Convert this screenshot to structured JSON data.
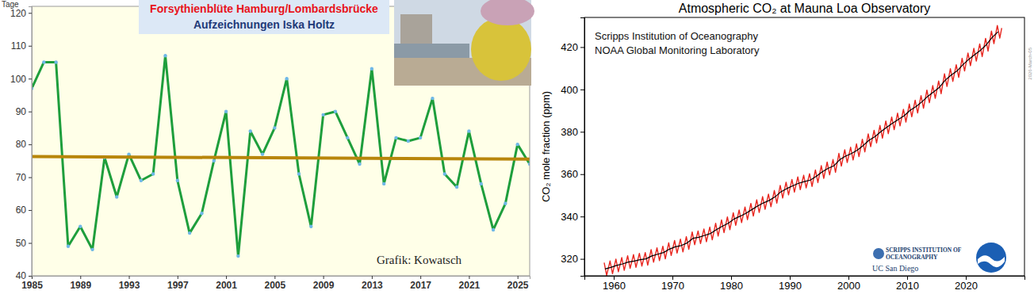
{
  "chart_data": [
    {
      "type": "line",
      "title": "Forsythienblüte Hamburg/Lombardsbrücke",
      "subtitle": "Aufzeichnungen Iska Holtz",
      "y_label": "Tage",
      "annotations": [
        "Grafik: Kowatsch"
      ],
      "x": [
        1985,
        1986,
        1987,
        1988,
        1989,
        1990,
        1991,
        1992,
        1993,
        1994,
        1995,
        1996,
        1997,
        1998,
        1999,
        2000,
        2001,
        2002,
        2003,
        2004,
        2005,
        2006,
        2007,
        2008,
        2009,
        2010,
        2011,
        2012,
        2013,
        2014,
        2015,
        2016,
        2017,
        2018,
        2019,
        2020,
        2021,
        2022,
        2023,
        2024,
        2025,
        2026
      ],
      "series": [
        {
          "color": "#1e9e3c",
          "marker": "circle",
          "values": [
            97,
            105,
            105,
            49,
            55,
            48,
            76,
            64,
            77,
            69,
            71,
            107,
            69,
            53,
            59,
            75,
            90,
            46,
            84,
            77,
            85,
            100,
            71,
            55,
            89,
            90,
            82,
            74,
            103,
            68,
            82,
            81,
            82,
            94,
            71,
            67,
            84,
            68,
            54,
            62,
            80,
            74
          ]
        },
        {
          "color": "#b8860b",
          "x": [
            1985,
            2026
          ],
          "values": [
            76.3,
            75.5
          ]
        }
      ],
      "xlim": [
        1985,
        2026
      ],
      "xticks": [
        1985,
        1989,
        1993,
        1997,
        2001,
        2005,
        2009,
        2013,
        2017,
        2021,
        2025
      ],
      "ylim": [
        40,
        122
      ],
      "yticks": [
        40,
        50,
        60,
        70,
        80,
        90,
        100,
        110,
        120
      ],
      "grid": false
    },
    {
      "type": "line",
      "title": "Atmospheric CO₂ at Mauna Loa Observatory",
      "y_label": "CO₂ mole fraction (ppm)",
      "annotations": [
        "Scripps Institution of Oceanography",
        "NOAA Global Monitoring Laboratory",
        "SCRIPPS INSTITUTION OF",
        "OCEANOGRAPHY",
        "UC San Diego",
        "2026-March-05"
      ],
      "series": [
        {
          "color": "#e8251e",
          "x": [
            1958.37,
            1958.79,
            1959.37,
            1959.79,
            1960.37,
            1960.79,
            1961.37,
            1961.79,
            1962.37,
            1962.79,
            1963.37,
            1963.79,
            1964.37,
            1964.79,
            1965.37,
            1965.79,
            1966.37,
            1966.79,
            1967.37,
            1967.79,
            1968.37,
            1968.79,
            1969.37,
            1969.79,
            1970.37,
            1970.79,
            1971.37,
            1971.79,
            1972.37,
            1972.79,
            1973.37,
            1973.79,
            1974.37,
            1974.79,
            1975.37,
            1975.79,
            1976.37,
            1976.79,
            1977.37,
            1977.79,
            1978.37,
            1978.79,
            1979.37,
            1979.79,
            1980.37,
            1980.79,
            1981.37,
            1981.79,
            1982.37,
            1982.79,
            1983.37,
            1983.79,
            1984.37,
            1984.79,
            1985.37,
            1985.79,
            1986.37,
            1986.79,
            1987.37,
            1987.79,
            1988.37,
            1988.79,
            1989.37,
            1989.79,
            1990.37,
            1990.79,
            1991.37,
            1991.79,
            1992.37,
            1992.79,
            1993.37,
            1993.79,
            1994.37,
            1994.79,
            1995.37,
            1995.79,
            1996.37,
            1996.79,
            1997.37,
            1997.79,
            1998.37,
            1998.79,
            1999.37,
            1999.79,
            2000.37,
            2000.79,
            2001.37,
            2001.79,
            2002.37,
            2002.79,
            2003.37,
            2003.79,
            2004.37,
            2004.79,
            2005.37,
            2005.79,
            2006.37,
            2006.79,
            2007.37,
            2007.79,
            2008.37,
            2008.79,
            2009.37,
            2009.79,
            2010.37,
            2010.79,
            2011.37,
            2011.79,
            2012.37,
            2012.79,
            2013.37,
            2013.79,
            2014.37,
            2014.79,
            2015.37,
            2015.79,
            2016.37,
            2016.79,
            2017.37,
            2017.79,
            2018.37,
            2018.79,
            2019.37,
            2019.79,
            2020.37,
            2020.79,
            2021.37,
            2021.79,
            2022.37,
            2022.79,
            2023.37,
            2023.79,
            2024.37,
            2024.79,
            2025.37,
            2025.79,
            2026.12
          ],
          "values": [
            318.2,
            312.2,
            319.0,
            313.0,
            319.9,
            313.9,
            320.6,
            314.6,
            321.5,
            315.5,
            322.0,
            316.0,
            322.6,
            316.6,
            323.0,
            317.0,
            324.4,
            318.4,
            325.2,
            319.2,
            326.0,
            320.0,
            327.6,
            321.6,
            328.7,
            322.7,
            329.3,
            323.3,
            330.5,
            324.5,
            332.7,
            326.7,
            333.2,
            327.2,
            334.1,
            328.1,
            335.0,
            329.0,
            336.8,
            330.8,
            338.4,
            332.4,
            339.8,
            333.8,
            341.8,
            335.8,
            343.1,
            337.1,
            344.5,
            338.5,
            346.2,
            340.2,
            347.9,
            341.9,
            349.4,
            343.4,
            350.6,
            344.6,
            352.3,
            346.3,
            354.7,
            348.7,
            356.2,
            350.2,
            357.5,
            351.5,
            358.7,
            352.7,
            359.5,
            353.5,
            360.2,
            354.2,
            362.0,
            356.0,
            364.0,
            358.0,
            365.7,
            359.7,
            366.9,
            360.9,
            369.8,
            363.8,
            371.5,
            365.5,
            372.7,
            366.7,
            374.3,
            368.3,
            376.5,
            370.5,
            379.0,
            373.0,
            380.7,
            374.7,
            383.0,
            377.0,
            385.1,
            379.1,
            387.0,
            381.0,
            388.8,
            382.8,
            390.6,
            384.6,
            393.1,
            387.1,
            394.9,
            388.9,
            397.1,
            391.1,
            399.7,
            393.7,
            401.8,
            395.8,
            404.0,
            398.0,
            407.4,
            401.4,
            409.8,
            403.8,
            411.7,
            405.7,
            414.7,
            408.7,
            417.2,
            411.2,
            419.4,
            413.4,
            421.5,
            415.5,
            424.1,
            418.1,
            427.6,
            421.6,
            430.2,
            424.2,
            429.0
          ]
        },
        {
          "color": "#000000",
          "x": [
            1958.5,
            1959.5,
            1960.5,
            1961.5,
            1962.5,
            1963.5,
            1964.5,
            1965.5,
            1966.5,
            1967.5,
            1968.5,
            1969.5,
            1970.5,
            1971.5,
            1972.5,
            1973.5,
            1974.5,
            1975.5,
            1976.5,
            1977.5,
            1978.5,
            1979.5,
            1980.5,
            1981.5,
            1982.5,
            1983.5,
            1984.5,
            1985.5,
            1986.5,
            1987.5,
            1988.5,
            1989.5,
            1990.5,
            1991.5,
            1992.5,
            1993.5,
            1994.5,
            1995.5,
            1996.5,
            1997.5,
            1998.5,
            1999.5,
            2000.5,
            2001.5,
            2002.5,
            2003.5,
            2004.5,
            2005.5,
            2006.5,
            2007.5,
            2008.5,
            2009.5,
            2010.5,
            2011.5,
            2012.5,
            2013.5,
            2014.5,
            2015.5,
            2016.5,
            2017.5,
            2018.5,
            2019.5,
            2020.5,
            2021.5,
            2022.5,
            2023.5,
            2024.5,
            2025.5
          ],
          "values": [
            315.2,
            316.0,
            316.9,
            317.6,
            318.5,
            319.0,
            319.6,
            320.0,
            321.4,
            322.2,
            323.0,
            324.6,
            325.7,
            326.3,
            327.5,
            329.7,
            330.2,
            331.1,
            332.0,
            333.8,
            335.4,
            336.8,
            338.8,
            340.1,
            341.5,
            343.2,
            344.9,
            346.4,
            347.6,
            349.3,
            351.7,
            353.2,
            354.5,
            355.7,
            356.5,
            357.2,
            359.0,
            361.0,
            362.7,
            363.9,
            366.8,
            368.5,
            369.7,
            371.3,
            373.5,
            376.0,
            377.7,
            380.0,
            382.1,
            384.0,
            385.8,
            387.6,
            390.1,
            391.9,
            394.1,
            396.7,
            398.8,
            401.0,
            404.4,
            406.8,
            408.7,
            411.7,
            414.2,
            416.4,
            418.5,
            421.1,
            424.6,
            427.2
          ]
        }
      ],
      "xlim": [
        1955,
        2030
      ],
      "xticks": [
        1960,
        1970,
        1980,
        1990,
        2000,
        2010,
        2020
      ],
      "ylim": [
        312,
        434
      ],
      "yticks": [
        320,
        340,
        360,
        380,
        400,
        420
      ],
      "grid": false
    }
  ]
}
